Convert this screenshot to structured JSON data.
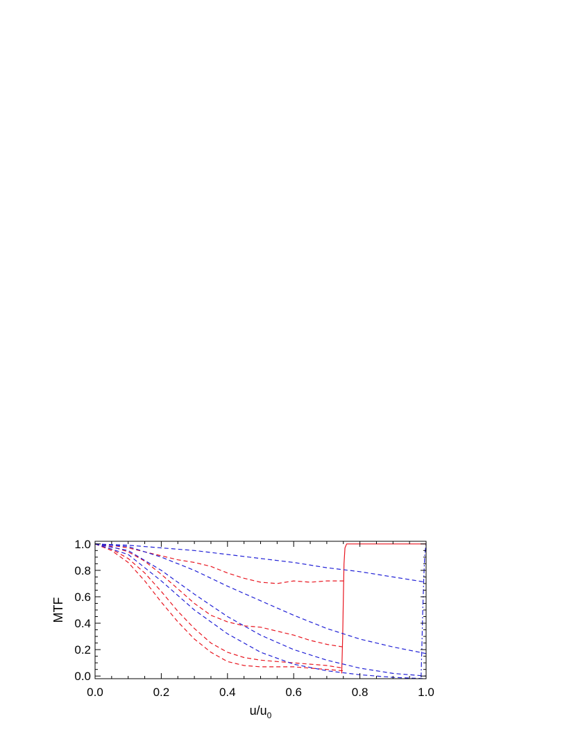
{
  "chart_data": {
    "type": "line",
    "title": "",
    "xlabel": "u/u",
    "xlabel_subscript": "0",
    "ylabel": "MTF",
    "xlim": [
      0.0,
      1.0
    ],
    "ylim": [
      -0.02,
      1.02
    ],
    "xticks": [
      "0.0",
      "0.2",
      "0.4",
      "0.6",
      "0.8",
      "1.0"
    ],
    "yticks": [
      "0.0",
      "0.2",
      "0.4",
      "0.6",
      "0.8",
      "1.0"
    ],
    "grid": false,
    "legend": "none",
    "colors": {
      "red": "#e8141e",
      "blue": "#1f1fd6"
    },
    "series": [
      {
        "color": "red",
        "dash": "dashed",
        "x": [
          0,
          0.05,
          0.1,
          0.15,
          0.2,
          0.25,
          0.3,
          0.35,
          0.4,
          0.45,
          0.5,
          0.55,
          0.6,
          0.65,
          0.7,
          0.75
        ],
        "y": [
          1.0,
          0.95,
          0.86,
          0.72,
          0.56,
          0.41,
          0.28,
          0.18,
          0.11,
          0.08,
          0.07,
          0.07,
          0.07,
          0.06,
          0.05,
          0.04
        ]
      },
      {
        "color": "red",
        "dash": "dashed",
        "x": [
          0,
          0.05,
          0.1,
          0.15,
          0.2,
          0.25,
          0.3,
          0.35,
          0.4,
          0.45,
          0.5,
          0.55,
          0.6,
          0.65,
          0.7,
          0.75
        ],
        "y": [
          1.0,
          0.96,
          0.89,
          0.78,
          0.64,
          0.49,
          0.36,
          0.25,
          0.18,
          0.14,
          0.12,
          0.11,
          0.1,
          0.09,
          0.08,
          0.06
        ]
      },
      {
        "color": "red",
        "dash": "dashed",
        "x": [
          0,
          0.05,
          0.1,
          0.15,
          0.2,
          0.25,
          0.3,
          0.35,
          0.4,
          0.45,
          0.5,
          0.55,
          0.6,
          0.65,
          0.7,
          0.75
        ],
        "y": [
          1.0,
          0.98,
          0.94,
          0.87,
          0.77,
          0.66,
          0.55,
          0.46,
          0.41,
          0.38,
          0.37,
          0.34,
          0.31,
          0.27,
          0.24,
          0.22
        ]
      },
      {
        "color": "red",
        "dash": "dashed",
        "x": [
          0,
          0.05,
          0.1,
          0.15,
          0.2,
          0.25,
          0.3,
          0.35,
          0.4,
          0.45,
          0.5,
          0.55,
          0.6,
          0.65,
          0.7,
          0.75
        ],
        "y": [
          1.0,
          0.99,
          0.97,
          0.94,
          0.91,
          0.88,
          0.86,
          0.83,
          0.78,
          0.74,
          0.71,
          0.7,
          0.72,
          0.71,
          0.72,
          0.72
        ]
      },
      {
        "color": "red",
        "dash": "solid",
        "x": [
          0.745,
          0.748,
          0.75,
          0.752,
          0.755,
          0.76,
          0.8,
          0.9,
          1.0
        ],
        "y": [
          0.02,
          0.3,
          0.6,
          0.85,
          0.97,
          1.0,
          1.0,
          1.0,
          1.0
        ]
      },
      {
        "color": "blue",
        "dash": "dashed",
        "x": [
          0,
          0.1,
          0.2,
          0.3,
          0.4,
          0.5,
          0.6,
          0.7,
          0.8,
          0.9,
          1.0
        ],
        "y": [
          1.0,
          0.99,
          0.97,
          0.95,
          0.92,
          0.89,
          0.86,
          0.82,
          0.79,
          0.75,
          0.71
        ]
      },
      {
        "color": "blue",
        "dash": "dashed",
        "x": [
          0,
          0.1,
          0.2,
          0.3,
          0.4,
          0.5,
          0.6,
          0.7,
          0.8,
          0.9,
          1.0
        ],
        "y": [
          1.0,
          0.98,
          0.9,
          0.8,
          0.68,
          0.57,
          0.46,
          0.36,
          0.28,
          0.22,
          0.17
        ]
      },
      {
        "color": "blue",
        "dash": "dashed",
        "x": [
          0,
          0.1,
          0.2,
          0.3,
          0.4,
          0.5,
          0.6,
          0.7,
          0.8,
          0.9,
          1.0
        ],
        "y": [
          1.0,
          0.95,
          0.8,
          0.62,
          0.45,
          0.31,
          0.2,
          0.12,
          0.06,
          0.02,
          0.0
        ]
      },
      {
        "color": "blue",
        "dash": "dashed",
        "x": [
          0,
          0.1,
          0.2,
          0.3,
          0.4,
          0.5,
          0.6,
          0.7,
          0.8,
          0.9,
          1.0
        ],
        "y": [
          1.0,
          0.92,
          0.72,
          0.5,
          0.32,
          0.18,
          0.09,
          0.04,
          0.01,
          -0.01,
          -0.02
        ]
      },
      {
        "color": "blue",
        "dash": "dashdot",
        "x": [
          0.985,
          0.987,
          0.99,
          0.993,
          0.996,
          1.0
        ],
        "y": [
          -0.01,
          0.2,
          0.5,
          0.75,
          0.92,
          1.0
        ]
      }
    ]
  }
}
